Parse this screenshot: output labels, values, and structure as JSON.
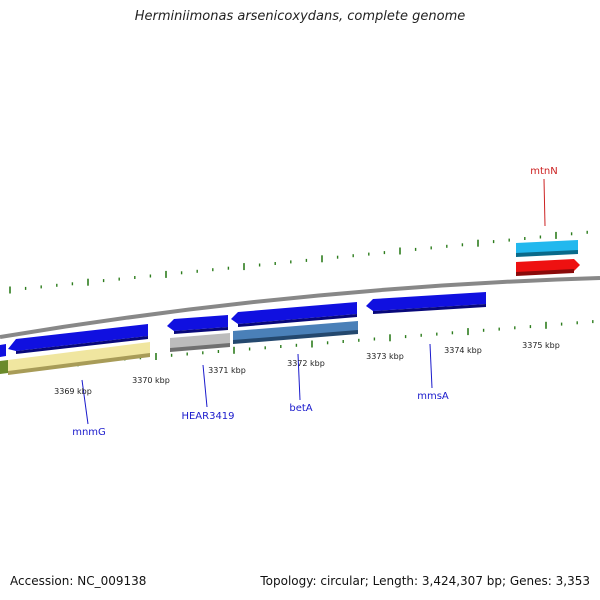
{
  "title": "Herminiimonas arsenicoxydans, complete genome",
  "footer": {
    "accession": "Accession: NC_009138",
    "stats": "Topology: circular; Length: 3,424,307 bp; Genes: 3,353"
  },
  "scale_labels": [
    "3369 kbp",
    "3370 kbp",
    "3371 kbp",
    "3372 kbp",
    "3373 kbp",
    "3374 kbp",
    "3375 kbp"
  ],
  "gene_labels": {
    "mtnN": "mtnN",
    "mnmG": "mnmG",
    "HEAR3419": "HEAR3419",
    "betA": "betA",
    "mmsA": "mmsA"
  },
  "colors": {
    "backbone": "#888888",
    "tick": "#2e7d1e",
    "gene_blue": "#1010e0",
    "gene_cyan": "#22b8ee",
    "gene_red": "#ee1111",
    "gene_yellow": "#f0e6a0",
    "gene_gray": "#bcbcbc",
    "gene_steel": "#4a80b8",
    "gene_olive": "#6a8a2a",
    "label_blue": "#1a1acc",
    "label_red": "#cc2222"
  }
}
